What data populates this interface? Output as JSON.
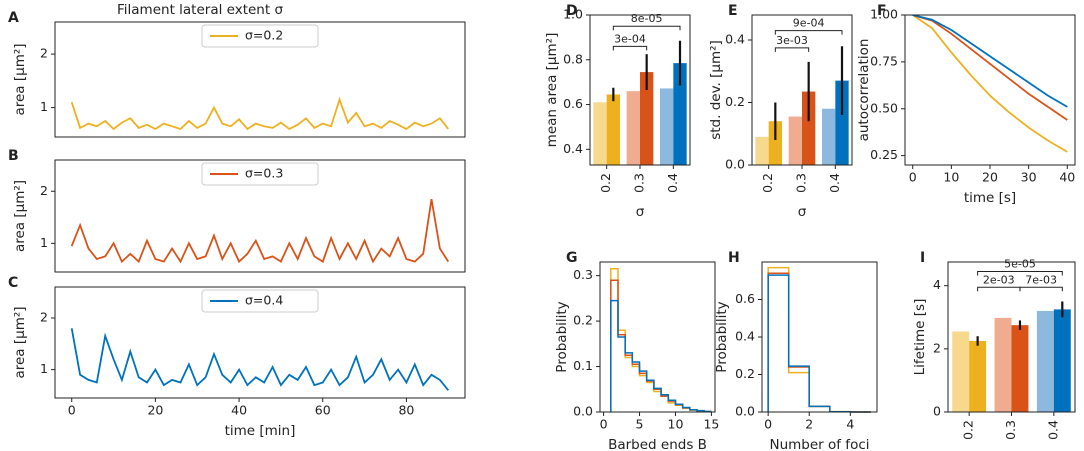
{
  "chart_data": [
    {
      "type": "line",
      "panel": "A",
      "title": "Filament lateral extent σ",
      "ylabel": "area [μm²]",
      "xlim": [
        -4,
        94
      ],
      "ylim": [
        0.45,
        2.6
      ],
      "yticks": [
        1,
        2
      ],
      "x": [
        0,
        2,
        4,
        6,
        8,
        10,
        12,
        14,
        16,
        18,
        20,
        22,
        24,
        26,
        28,
        30,
        32,
        34,
        36,
        38,
        40,
        42,
        44,
        46,
        48,
        50,
        52,
        54,
        56,
        58,
        60,
        62,
        64,
        66,
        68,
        70,
        72,
        74,
        76,
        78,
        80,
        82,
        84,
        86,
        88,
        90
      ],
      "series": [
        {
          "name": "σ=0.2",
          "color": "#EDB120",
          "values": [
            1.1,
            0.62,
            0.7,
            0.65,
            0.75,
            0.6,
            0.72,
            0.8,
            0.62,
            0.68,
            0.6,
            0.7,
            0.65,
            0.6,
            0.75,
            0.62,
            0.7,
            1.0,
            0.7,
            0.65,
            0.78,
            0.6,
            0.7,
            0.65,
            0.62,
            0.72,
            0.6,
            0.68,
            0.8,
            0.62,
            0.7,
            0.65,
            1.15,
            0.72,
            0.9,
            0.65,
            0.7,
            0.62,
            0.75,
            0.68,
            0.6,
            0.72,
            0.65,
            0.7,
            0.8,
            0.6
          ]
        }
      ]
    },
    {
      "type": "line",
      "panel": "B",
      "ylabel": "area [μm²]",
      "xlim": [
        -4,
        94
      ],
      "ylim": [
        0.45,
        2.6
      ],
      "yticks": [
        1,
        2
      ],
      "x": [
        0,
        2,
        4,
        6,
        8,
        10,
        12,
        14,
        16,
        18,
        20,
        22,
        24,
        26,
        28,
        30,
        32,
        34,
        36,
        38,
        40,
        42,
        44,
        46,
        48,
        50,
        52,
        54,
        56,
        58,
        60,
        62,
        64,
        66,
        68,
        70,
        72,
        74,
        76,
        78,
        80,
        82,
        84,
        86,
        88,
        90
      ],
      "series": [
        {
          "name": "σ=0.3",
          "color": "#D95319",
          "values": [
            0.95,
            1.35,
            0.9,
            0.7,
            0.75,
            1.0,
            0.65,
            0.8,
            0.65,
            1.05,
            0.7,
            0.65,
            0.9,
            0.65,
            1.0,
            0.7,
            0.75,
            1.15,
            0.7,
            1.0,
            0.65,
            0.8,
            1.05,
            0.7,
            0.75,
            0.65,
            1.0,
            0.7,
            1.1,
            0.75,
            0.65,
            1.1,
            0.7,
            1.0,
            0.7,
            1.05,
            0.65,
            0.9,
            0.75,
            1.1,
            0.7,
            0.65,
            0.8,
            1.85,
            0.9,
            0.65
          ]
        }
      ]
    },
    {
      "type": "line",
      "panel": "C",
      "ylabel": "area [μm²]",
      "xlabel": "time [min]",
      "xlim": [
        -4,
        94
      ],
      "ylim": [
        0.45,
        2.6
      ],
      "yticks": [
        1,
        2
      ],
      "xticks": [
        0,
        20,
        40,
        60,
        80
      ],
      "x": [
        0,
        2,
        4,
        6,
        8,
        10,
        12,
        14,
        16,
        18,
        20,
        22,
        24,
        26,
        28,
        30,
        32,
        34,
        36,
        38,
        40,
        42,
        44,
        46,
        48,
        50,
        52,
        54,
        56,
        58,
        60,
        62,
        64,
        66,
        68,
        70,
        72,
        74,
        76,
        78,
        80,
        82,
        84,
        86,
        88,
        90
      ],
      "series": [
        {
          "name": "σ=0.4",
          "color": "#0072BD",
          "values": [
            1.8,
            0.9,
            0.8,
            0.75,
            1.65,
            1.2,
            0.8,
            1.35,
            0.85,
            0.75,
            1.0,
            0.7,
            0.8,
            0.75,
            1.1,
            0.7,
            0.85,
            1.3,
            0.9,
            0.75,
            1.0,
            0.7,
            0.85,
            0.75,
            1.05,
            0.7,
            0.9,
            0.8,
            1.05,
            0.7,
            0.75,
            1.0,
            0.7,
            0.85,
            1.25,
            0.75,
            0.9,
            1.2,
            0.8,
            1.0,
            0.75,
            1.1,
            0.7,
            0.9,
            0.8,
            0.6
          ]
        }
      ]
    },
    {
      "type": "bar",
      "panel": "D",
      "ylabel": "mean area [μm²]",
      "xlabel": "σ",
      "categories": [
        "0.2",
        "0.3",
        "0.4"
      ],
      "ylim": [
        0.33,
        1.0
      ],
      "yticks": [
        0.4,
        0.6,
        0.8,
        {
          "value": 1,
          "label": "1.0"
        }
      ],
      "series": [
        {
          "colors": [
            "#F6D98C",
            "#F0AC90",
            "#8DB9DF"
          ],
          "values": [
            0.61,
            0.66,
            0.672
          ]
        },
        {
          "colors": [
            "#EDB120",
            "#D95319",
            "#0072BD"
          ],
          "values": [
            0.645,
            0.745,
            0.785
          ],
          "errors": [
            0.03,
            0.08,
            0.1
          ]
        }
      ],
      "annotations": [
        {
          "text": "3e-04",
          "groups": [
            "0.2",
            "0.3"
          ],
          "y": 0.86
        },
        {
          "text": "8e-05",
          "groups": [
            "0.2",
            "0.4"
          ],
          "y": 0.95
        }
      ]
    },
    {
      "type": "bar",
      "panel": "E",
      "ylabel": "std. dev. [μm²]",
      "xlabel": "σ",
      "categories": [
        "0.2",
        "0.3",
        "0.4"
      ],
      "ylim": [
        0,
        0.48
      ],
      "yticks": [
        {
          "value": 0,
          "label": "0.0"
        },
        0.2,
        0.4
      ],
      "series": [
        {
          "colors": [
            "#F6D98C",
            "#F0AC90",
            "#8DB9DF"
          ],
          "values": [
            0.09,
            0.155,
            0.18
          ]
        },
        {
          "colors": [
            "#EDB120",
            "#D95319",
            "#0072BD"
          ],
          "values": [
            0.14,
            0.235,
            0.27
          ],
          "errors": [
            0.06,
            0.095,
            0.11
          ]
        }
      ],
      "annotations": [
        {
          "text": "3e-03",
          "groups": [
            "0.2",
            "0.3"
          ],
          "y": 0.375
        },
        {
          "text": "9e-04",
          "groups": [
            "0.2",
            "0.4"
          ],
          "y": 0.43
        }
      ]
    },
    {
      "type": "line",
      "panel": "F",
      "ylabel": "autocorrelation",
      "xlabel": "time [s]",
      "xlim": [
        -2,
        42
      ],
      "ylim": [
        0.2,
        1.0
      ],
      "xticks": [
        0,
        10,
        20,
        30,
        40
      ],
      "yticks": [
        0.25,
        {
          "value": 0.5,
          "label": "0.50"
        },
        0.75,
        {
          "value": 1,
          "label": "1.00"
        }
      ],
      "x": [
        0,
        5,
        10,
        15,
        20,
        25,
        30,
        35,
        40
      ],
      "series": [
        {
          "color": "#EDB120",
          "values": [
            1,
            0.93,
            0.8,
            0.68,
            0.57,
            0.48,
            0.4,
            0.33,
            0.27
          ]
        },
        {
          "color": "#D95319",
          "values": [
            1,
            0.97,
            0.9,
            0.82,
            0.74,
            0.66,
            0.58,
            0.51,
            0.44
          ]
        },
        {
          "color": "#0072BD",
          "values": [
            1,
            0.975,
            0.92,
            0.85,
            0.78,
            0.71,
            0.64,
            0.57,
            0.51
          ]
        }
      ]
    },
    {
      "type": "histogram",
      "panel": "G",
      "ylabel": "Probability",
      "xlabel": "Barbed ends B",
      "xlim": [
        -0.5,
        15.5
      ],
      "ylim": [
        0,
        0.33
      ],
      "xticks": [
        0,
        5,
        10,
        15
      ],
      "yticks": [
        {
          "value": 0,
          "label": "0.0"
        },
        0.1,
        0.2,
        0.3
      ],
      "bins": [
        1,
        2,
        3,
        4,
        5,
        6,
        7,
        8,
        9,
        10,
        11,
        12,
        13,
        14,
        15
      ],
      "series": [
        {
          "color": "#EDB120",
          "values": [
            0.315,
            0.18,
            0.12,
            0.1,
            0.08,
            0.065,
            0.045,
            0.035,
            0.02,
            0.015,
            0.008,
            0.004,
            0.002,
            0.001
          ]
        },
        {
          "color": "#D95319",
          "values": [
            0.29,
            0.17,
            0.125,
            0.105,
            0.085,
            0.068,
            0.05,
            0.035,
            0.024,
            0.016,
            0.009,
            0.005,
            0.002,
            0.001
          ]
        },
        {
          "color": "#0072BD",
          "values": [
            0.245,
            0.165,
            0.13,
            0.11,
            0.09,
            0.07,
            0.052,
            0.038,
            0.026,
            0.017,
            0.01,
            0.005,
            0.003,
            0.001
          ]
        }
      ]
    },
    {
      "type": "histogram",
      "panel": "H",
      "ylabel": "Probability",
      "xlabel": "Number of foci",
      "xlim": [
        -0.3,
        5.3
      ],
      "ylim": [
        0,
        0.8
      ],
      "xticks": [
        0,
        2,
        4
      ],
      "yticks": [
        {
          "value": 0,
          "label": "0.0"
        },
        0.2,
        0.4,
        0.6
      ],
      "bins": [
        0,
        1,
        2,
        3,
        4,
        5
      ],
      "series": [
        {
          "color": "#EDB120",
          "values": [
            0.77,
            0.21,
            0.03,
            0.002,
            0
          ]
        },
        {
          "color": "#D95319",
          "values": [
            0.74,
            0.24,
            0.03,
            0.001,
            0
          ]
        },
        {
          "color": "#0072BD",
          "values": [
            0.73,
            0.245,
            0.03,
            0.001,
            0
          ]
        }
      ]
    },
    {
      "type": "bar",
      "panel": "I",
      "ylabel": "Lifetime [s]",
      "xlabel": "σ",
      "categories": [
        "0.2",
        "0.3",
        "0.4"
      ],
      "ylim": [
        0,
        4.75
      ],
      "yticks": [
        0,
        2,
        4
      ],
      "series": [
        {
          "colors": [
            "#F6D98C",
            "#F0AC90",
            "#8DB9DF"
          ],
          "values": [
            2.55,
            2.98,
            3.2
          ]
        },
        {
          "colors": [
            "#EDB120",
            "#D95319",
            "#0072BD"
          ],
          "values": [
            2.25,
            2.75,
            3.25
          ],
          "errors": [
            0.15,
            0.15,
            0.25
          ]
        }
      ],
      "annotations": [
        {
          "text": "2e-03",
          "groups": [
            "0.2",
            "0.3"
          ],
          "y": 3.95
        },
        {
          "text": "7e-03",
          "groups": [
            "0.3",
            "0.4"
          ],
          "y": 3.95
        },
        {
          "text": "5e-05",
          "groups": [
            "0.2",
            "0.4"
          ],
          "y": 4.45
        }
      ]
    }
  ]
}
